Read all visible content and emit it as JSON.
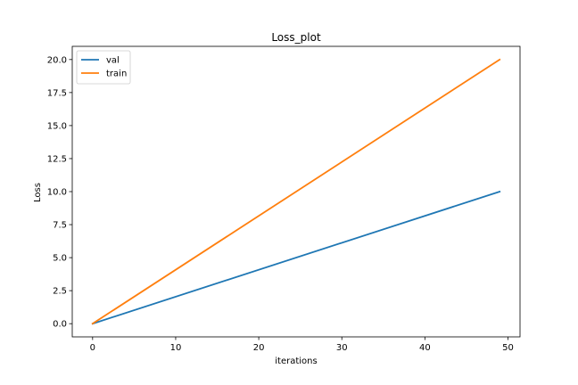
{
  "chart_data": {
    "type": "line",
    "title": "Loss_plot",
    "xlabel": "iterations",
    "ylabel": "Loss",
    "xlim": [
      -2.45,
      51.45
    ],
    "ylim": [
      -1.0,
      21.0
    ],
    "x_ticks": [
      0,
      10,
      20,
      30,
      40,
      50
    ],
    "x_tick_labels": [
      "0",
      "10",
      "20",
      "30",
      "40",
      "50"
    ],
    "y_ticks": [
      0,
      2.5,
      5,
      7.5,
      10,
      12.5,
      15,
      17.5,
      20
    ],
    "y_tick_labels": [
      "0.0",
      "2.5",
      "5.0",
      "7.5",
      "10.0",
      "12.5",
      "15.0",
      "17.5",
      "20.0"
    ],
    "grid": false,
    "legend_position": "top-left",
    "series": [
      {
        "name": "val",
        "color": "#1f77b4",
        "x": [
          0,
          49
        ],
        "y": [
          0.0,
          10.0
        ]
      },
      {
        "name": "train",
        "color": "#ff7f0e",
        "x": [
          0,
          49
        ],
        "y": [
          0.0,
          20.0
        ]
      }
    ]
  }
}
